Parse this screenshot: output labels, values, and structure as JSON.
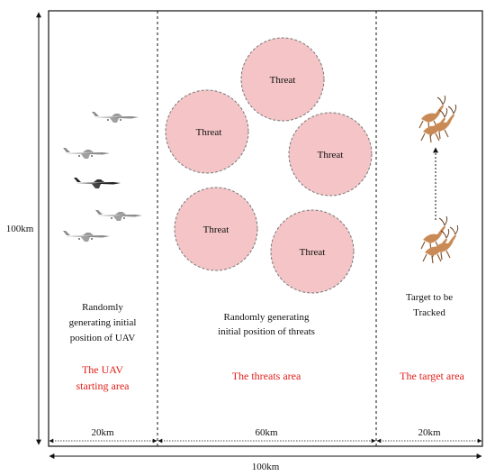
{
  "dimensions": {
    "height_label": "100km",
    "width_label": "100km",
    "segments": [
      "20km",
      "60km",
      "20km"
    ]
  },
  "threats": {
    "label": "Threat",
    "fill": "#f4c4c6",
    "items": [
      {
        "label": "Threat"
      },
      {
        "label": "Threat"
      },
      {
        "label": "Threat"
      },
      {
        "label": "Threat"
      },
      {
        "label": "Threat"
      }
    ]
  },
  "areas": {
    "uav": {
      "description": [
        "Randomly",
        "generating initial",
        "position of UAV"
      ],
      "title": [
        "The UAV",
        "starting area"
      ]
    },
    "threats": {
      "description": [
        "Randomly generating",
        "initial position of threats"
      ],
      "title": [
        "The threats area"
      ]
    },
    "target": {
      "description": [
        "Target to be",
        "Tracked"
      ],
      "title": [
        "The target area"
      ]
    }
  },
  "colors": {
    "accent_red": "#e0201b",
    "threat_fill": "#f4c4c6"
  },
  "icons": [
    "uav-drone-icon",
    "deer-target-icon"
  ]
}
